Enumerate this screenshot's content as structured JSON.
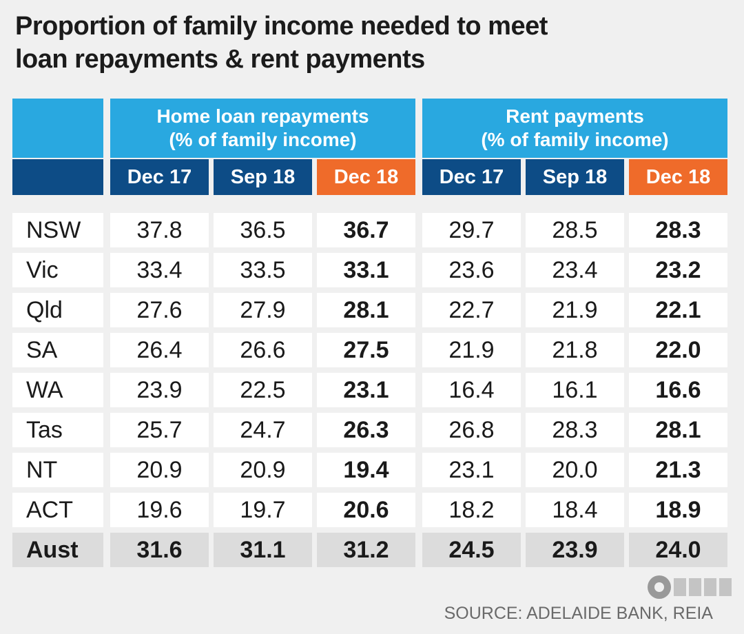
{
  "title_line1": "Proportion of family income needed to meet",
  "title_line2": "loan repayments & rent payments",
  "source": "SOURCE: ADELAIDE BANK, REIA",
  "colors": {
    "header_light": "#29a8e0",
    "header_dark": "#0d4c86",
    "header_highlight": "#ef6b2a",
    "total_row": "#dcdcdc"
  },
  "chart_data": {
    "type": "table",
    "title": "Proportion of family income needed to meet loan repayments & rent payments",
    "groups": [
      {
        "name_line1": "Home loan repayments",
        "name_line2": "(% of family income)",
        "periods": [
          "Dec 17",
          "Sep 18",
          "Dec 18"
        ]
      },
      {
        "name_line1": "Rent payments",
        "name_line2": "(% of family income)",
        "periods": [
          "Dec 17",
          "Sep 18",
          "Dec 18"
        ]
      }
    ],
    "rows": [
      {
        "label": "NSW",
        "values": [
          "37.8",
          "36.5",
          "36.7",
          "29.7",
          "28.5",
          "28.3"
        ]
      },
      {
        "label": "Vic",
        "values": [
          "33.4",
          "33.5",
          "33.1",
          "23.6",
          "23.4",
          "23.2"
        ]
      },
      {
        "label": "Qld",
        "values": [
          "27.6",
          "27.9",
          "28.1",
          "22.7",
          "21.9",
          "22.1"
        ]
      },
      {
        "label": "SA",
        "values": [
          "26.4",
          "26.6",
          "27.5",
          "21.9",
          "21.8",
          "22.0"
        ]
      },
      {
        "label": "WA",
        "values": [
          "23.9",
          "22.5",
          "23.1",
          "16.4",
          "16.1",
          "16.6"
        ]
      },
      {
        "label": "Tas",
        "values": [
          "25.7",
          "24.7",
          "26.3",
          "26.8",
          "28.3",
          "28.1"
        ]
      },
      {
        "label": "NT",
        "values": [
          "20.9",
          "20.9",
          "19.4",
          "23.1",
          "20.0",
          "21.3"
        ]
      },
      {
        "label": "ACT",
        "values": [
          "19.6",
          "19.7",
          "20.6",
          "18.2",
          "18.4",
          "18.9"
        ]
      },
      {
        "label": "Aust",
        "values": [
          "31.6",
          "31.1",
          "31.2",
          "24.5",
          "23.9",
          "24.0"
        ],
        "total": true
      }
    ]
  }
}
